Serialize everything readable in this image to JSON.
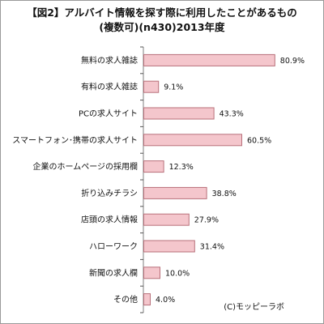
{
  "title_line1": "【図2】アルバイト情報を探す際に利用したことがあるもの",
  "title_line2": "(複数可)(n430)2013年度",
  "credit": "(C)モッピーラボ",
  "colors": {
    "bar_fill": "#f4c6cc",
    "bar_stroke": "#b8707a",
    "axis": "#7f7f7f",
    "tick": "#555555",
    "text": "#111111"
  },
  "chart_data": {
    "type": "bar",
    "orientation": "horizontal",
    "categories": [
      "無料の求人雑誌",
      "有料の求人雑誌",
      "PCの求人サイト",
      "スマートフォン･携帯の求人サイト",
      "企業のホームページの採用欄",
      "折り込みチラシ",
      "店頭の求人情報",
      "ハローワーク",
      "新聞の求人欄",
      "その他"
    ],
    "values": [
      80.9,
      9.1,
      43.3,
      60.5,
      12.3,
      38.8,
      27.9,
      31.4,
      10.0,
      4.0
    ],
    "value_labels": [
      "80.9%",
      "9.1%",
      "43.3%",
      "60.5%",
      "12.3%",
      "38.8%",
      "27.9%",
      "31.4%",
      "10.0%",
      "4.0%"
    ],
    "unit": "%",
    "xlim": [
      0,
      100
    ],
    "grid": false,
    "legend": "none"
  }
}
